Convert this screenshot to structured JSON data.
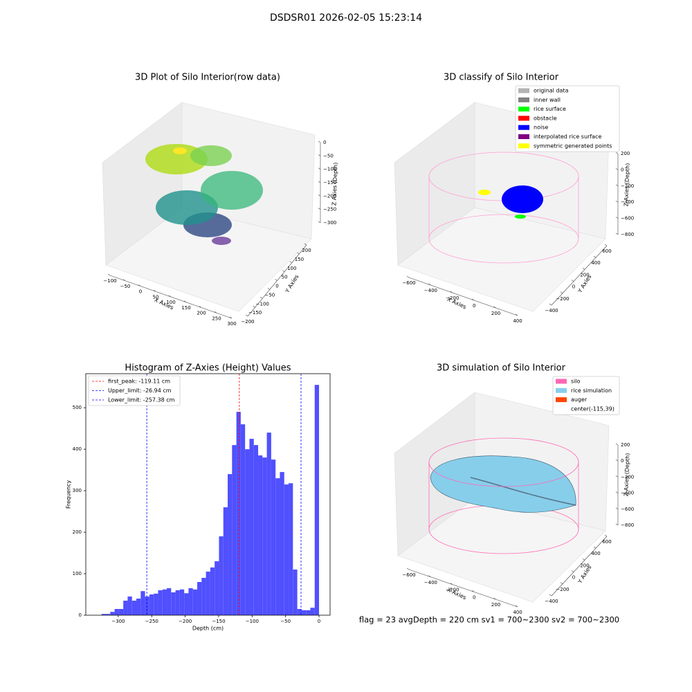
{
  "title": "DSDSR01 2026-02-05 15:23:14",
  "footer": "flag = 23  avgDepth = 220 cm  sv1 = 700~2300  sv2 = 700~2300",
  "chart_data": [
    {
      "type": "scatter3d",
      "title": "3D Plot of Silo Interior(row data)",
      "xlabel": "X Axies",
      "ylabel": "Y Axies",
      "zlabel": "Z Axies (Depth)",
      "xlim": [
        -100,
        300
      ],
      "ylim": [
        -200,
        200
      ],
      "zlim": [
        0,
        -300
      ],
      "xticks": [
        {
          "value": -100,
          "label": "−100"
        },
        {
          "value": -50,
          "label": "−50"
        },
        0,
        50,
        100,
        150,
        200,
        250,
        300
      ],
      "yticks": [
        {
          "value": -200,
          "label": "−200"
        },
        {
          "value": -150,
          "label": "−150"
        },
        {
          "value": -100,
          "label": "−100"
        },
        {
          "value": -50,
          "label": "−50"
        },
        0,
        50,
        100,
        150,
        200
      ],
      "zticks": [
        0,
        {
          "value": -50,
          "label": "−50"
        },
        {
          "value": -100,
          "label": "−100"
        },
        {
          "value": -150,
          "label": "−150"
        },
        {
          "value": -200,
          "label": "−200"
        },
        {
          "value": -250,
          "label": "−250"
        },
        {
          "value": -300,
          "label": "−300"
        }
      ]
    },
    {
      "type": "scatter3d",
      "title": "3D classify of Silo Interior",
      "xlabel": "X Axies",
      "ylabel": "Y Axies",
      "zlabel": "Z Axies (Depth)",
      "xlim": [
        -600,
        400
      ],
      "ylim": [
        -400,
        600
      ],
      "zlim": [
        200,
        -800
      ],
      "xticks": [
        {
          "value": -600,
          "label": "−600"
        },
        {
          "value": -400,
          "label": "−400"
        },
        {
          "value": -200,
          "label": "−200"
        },
        0,
        200,
        400
      ],
      "yticks": [
        {
          "value": -400,
          "label": "−400"
        },
        {
          "value": -200,
          "label": "−200"
        },
        0,
        200,
        400,
        600
      ],
      "zticks": [
        200,
        0,
        {
          "value": -200,
          "label": "−200"
        },
        {
          "value": -400,
          "label": "−400"
        },
        {
          "value": -600,
          "label": "−600"
        },
        {
          "value": -800,
          "label": "−800"
        }
      ],
      "legend": [
        {
          "name": "original data",
          "color": "#b3b3b3"
        },
        {
          "name": "inner wall",
          "color": "#808080"
        },
        {
          "name": "rice surface",
          "color": "#00ff00"
        },
        {
          "name": "obstacle",
          "color": "#ff0000"
        },
        {
          "name": "noise",
          "color": "#0000ff"
        },
        {
          "name": "interpolated rice surface",
          "color": "#800080"
        },
        {
          "name": "symmetric generated points",
          "color": "#ffff00"
        }
      ]
    },
    {
      "type": "histogram",
      "title": "Histogram of Z-Axies (Height) Values",
      "xlabel": "Depth (cm)",
      "ylabel": "Frequency",
      "color": "#5050ff",
      "xlim": [
        -348.5,
        16.5
      ],
      "ylim": [
        0,
        582
      ],
      "xticks": [
        {
          "value": -300,
          "label": "−300"
        },
        {
          "value": -250,
          "label": "−250"
        },
        {
          "value": -200,
          "label": "−200"
        },
        {
          "value": -150,
          "label": "−150"
        },
        {
          "value": -100,
          "label": "−100"
        },
        {
          "value": -50,
          "label": "−50"
        },
        0
      ],
      "yticks": [
        0,
        100,
        200,
        300,
        400,
        500
      ],
      "bins": [
        -325,
        -318.5,
        -312,
        -305.5,
        -299,
        -292.5,
        -286,
        -279.5,
        -273,
        -266.5,
        -260,
        -253.5,
        -247,
        -240.5,
        -234,
        -227.5,
        -221,
        -214.5,
        -208,
        -201.5,
        -195,
        -188.5,
        -182,
        -175.5,
        -169,
        -162.5,
        -156,
        -149.5,
        -143,
        -136.5,
        -130,
        -123.5,
        -117,
        -110.5,
        -104,
        -97.5,
        -91,
        -84.5,
        -78,
        -71.5,
        -65,
        -58.5,
        -52,
        -45.5,
        -39,
        -32.5,
        -26,
        -19.5,
        -13,
        -6.5,
        0
      ],
      "counts": [
        3,
        3,
        8,
        15,
        15,
        35,
        45,
        35,
        40,
        58,
        45,
        50,
        52,
        60,
        62,
        65,
        55,
        60,
        62,
        53,
        65,
        62,
        80,
        90,
        105,
        115,
        130,
        190,
        260,
        340,
        410,
        490,
        460,
        400,
        425,
        410,
        385,
        380,
        440,
        375,
        330,
        345,
        315,
        318,
        110,
        15,
        12,
        12,
        18,
        555
      ],
      "lines": [
        {
          "label": "first_peak: -119.11 cm",
          "value": -119.11,
          "color": "#ff0000"
        },
        {
          "label": "Upper_limit: -26.94 cm",
          "value": -26.94,
          "color": "#0000ff"
        },
        {
          "label": "Lower_limit: -257.38 cm",
          "value": -257.38,
          "color": "#0000ff"
        }
      ]
    },
    {
      "type": "surface3d",
      "title": "3D simulation of Silo Interior",
      "xlabel": "X Axies",
      "ylabel": "Y Axies",
      "zlabel": "Z Axies (Depth)",
      "xlim": [
        -600,
        400
      ],
      "ylim": [
        -400,
        600
      ],
      "zlim": [
        200,
        -800
      ],
      "xticks": [
        {
          "value": -600,
          "label": "−600"
        },
        {
          "value": -400,
          "label": "−400"
        },
        {
          "value": -200,
          "label": "−200"
        },
        0,
        200,
        400
      ],
      "yticks": [
        {
          "value": -400,
          "label": "−400"
        },
        {
          "value": -200,
          "label": "−200"
        },
        0,
        200,
        400,
        600
      ],
      "zticks": [
        200,
        0,
        {
          "value": -200,
          "label": "−200"
        },
        {
          "value": -400,
          "label": "−400"
        },
        {
          "value": -600,
          "label": "−600"
        },
        {
          "value": -800,
          "label": "−800"
        }
      ],
      "legend": [
        {
          "name": "silo",
          "color": "#ff69b4"
        },
        {
          "name": "rice simulation",
          "color": "#87ceeb"
        },
        {
          "name": "auger",
          "color": "#ff4500"
        },
        {
          "name": "center(-115,39)"
        }
      ]
    }
  ]
}
